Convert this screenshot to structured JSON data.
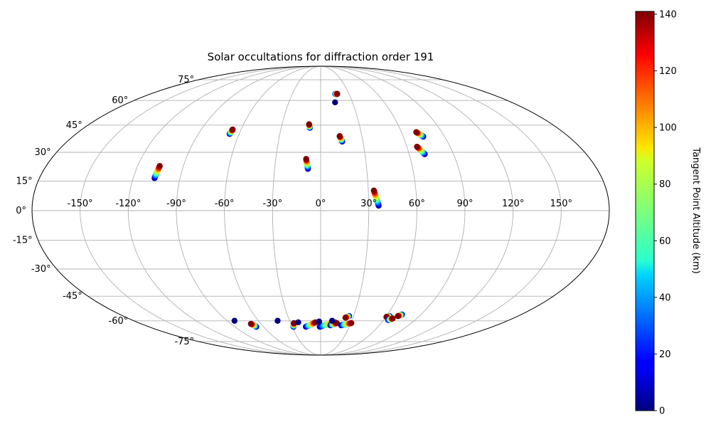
{
  "chart_data": {
    "type": "scatter",
    "projection": "mollweide",
    "title": "Solar occultations for diffraction order 191",
    "grid": true,
    "x_ticks": [
      "-150°",
      "-120°",
      "-90°",
      "-60°",
      "-30°",
      "0°",
      "30°",
      "60°",
      "90°",
      "120°",
      "150°"
    ],
    "y_ticks": [
      "-75°",
      "-60°",
      "-45°",
      "-30°",
      "-15°",
      "0°",
      "15°",
      "30°",
      "45°",
      "60°",
      "75°"
    ],
    "xlim": [
      -180,
      180
    ],
    "ylim": [
      -90,
      90
    ],
    "colorbar": {
      "label": "Tangent Point Altitude (km)",
      "colormap": "jet",
      "range": [
        0,
        141
      ],
      "ticks": [
        "0",
        "20",
        "40",
        "60",
        "80",
        "100",
        "120",
        "140"
      ]
    },
    "tracks": [
      {
        "start": [
          -106.3,
          16.5
        ],
        "end": [
          -105.5,
          22.8
        ]
      },
      {
        "start": [
          -67.0,
          40.0
        ],
        "end": [
          -66.3,
          42.5
        ]
      },
      {
        "start": [
          -8.3,
          21.3
        ],
        "end": [
          -9.7,
          26.5
        ]
      },
      {
        "start": [
          -8.2,
          43.5
        ],
        "end": [
          -9.0,
          45.5
        ]
      },
      {
        "start": [
          15.3,
          35.8
        ],
        "end": [
          13.8,
          38.8
        ]
      },
      {
        "start": [
          13.6,
          58.8
        ],
        "end": [
          13.6,
          58.8
        ]
      },
      {
        "start": [
          15.5,
          64.4
        ],
        "end": [
          17.5,
          64.4
        ]
      },
      {
        "start": [
          36.2,
          2.5
        ],
        "end": [
          33.5,
          10.2
        ]
      },
      {
        "start": [
          70.5,
          29.0
        ],
        "end": [
          67.0,
          33.0
        ]
      },
      {
        "start": [
          74.5,
          38.5
        ],
        "end": [
          71.0,
          41.0
        ]
      },
      {
        "start": [
          -83.0,
          -60.0
        ],
        "end": [
          -83.0,
          -60.0
        ]
      },
      {
        "start": [
          -67.5,
          -64.0
        ],
        "end": [
          -70.0,
          -62.0
        ]
      },
      {
        "start": [
          -41.5,
          -60.0
        ],
        "end": [
          -41.5,
          -60.0
        ]
      },
      {
        "start": [
          -28.5,
          -64.0
        ],
        "end": [
          -26.5,
          -61.5
        ]
      },
      {
        "start": [
          -22.0,
          -61.0
        ],
        "end": [
          -22.0,
          -61.0
        ]
      },
      {
        "start": [
          -15.5,
          -64.0
        ],
        "end": [
          -5.0,
          -61.0
        ]
      },
      {
        "start": [
          -1.0,
          -64.0
        ],
        "end": [
          14.0,
          -61.0
        ]
      },
      {
        "start": [
          -1.5,
          -60.5
        ],
        "end": [
          -1.5,
          -60.5
        ]
      },
      {
        "start": [
          10.0,
          -63.0
        ],
        "end": [
          16.0,
          -61.5
        ]
      },
      {
        "start": [
          11.0,
          -60.0
        ],
        "end": [
          11.0,
          -60.0
        ]
      },
      {
        "start": [
          21.0,
          -63.0
        ],
        "end": [
          30.5,
          -61.5
        ]
      },
      {
        "start": [
          26.0,
          -57.0
        ],
        "end": [
          23.0,
          -58.0
        ]
      },
      {
        "start": [
          63.0,
          -57.0
        ],
        "end": [
          60.5,
          -57.5
        ]
      },
      {
        "start": [
          64.5,
          -59.5
        ],
        "end": [
          67.5,
          -58.5
        ]
      },
      {
        "start": [
          73.0,
          -56.0
        ],
        "end": [
          70.5,
          -57.0
        ]
      }
    ]
  }
}
